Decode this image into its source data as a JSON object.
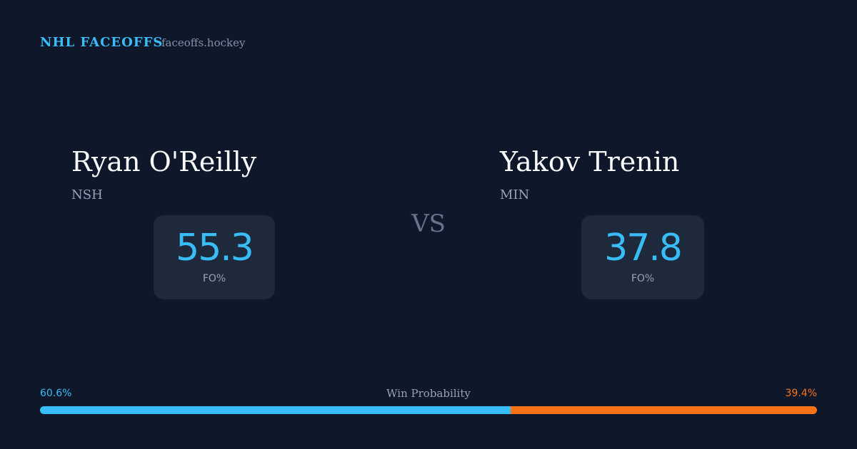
{
  "header": {
    "title": "NHL FACEOFFS",
    "site": "faceoffs.hockey"
  },
  "players": [
    {
      "name": "Ryan O'Reilly",
      "team": "NSH",
      "fo_pct": 55.3,
      "fo_label": "FO%"
    },
    {
      "name": "Yakov Trenin",
      "team": "MIN",
      "fo_pct": 37.8,
      "fo_label": "FO%"
    }
  ],
  "vs": "VS",
  "win_probability": {
    "label": "Win Probability",
    "values": [
      60.6,
      39.4
    ],
    "value_labels": [
      "60.6%",
      "39.4%"
    ],
    "colors": [
      "#38bdf8",
      "#f97316"
    ]
  }
}
